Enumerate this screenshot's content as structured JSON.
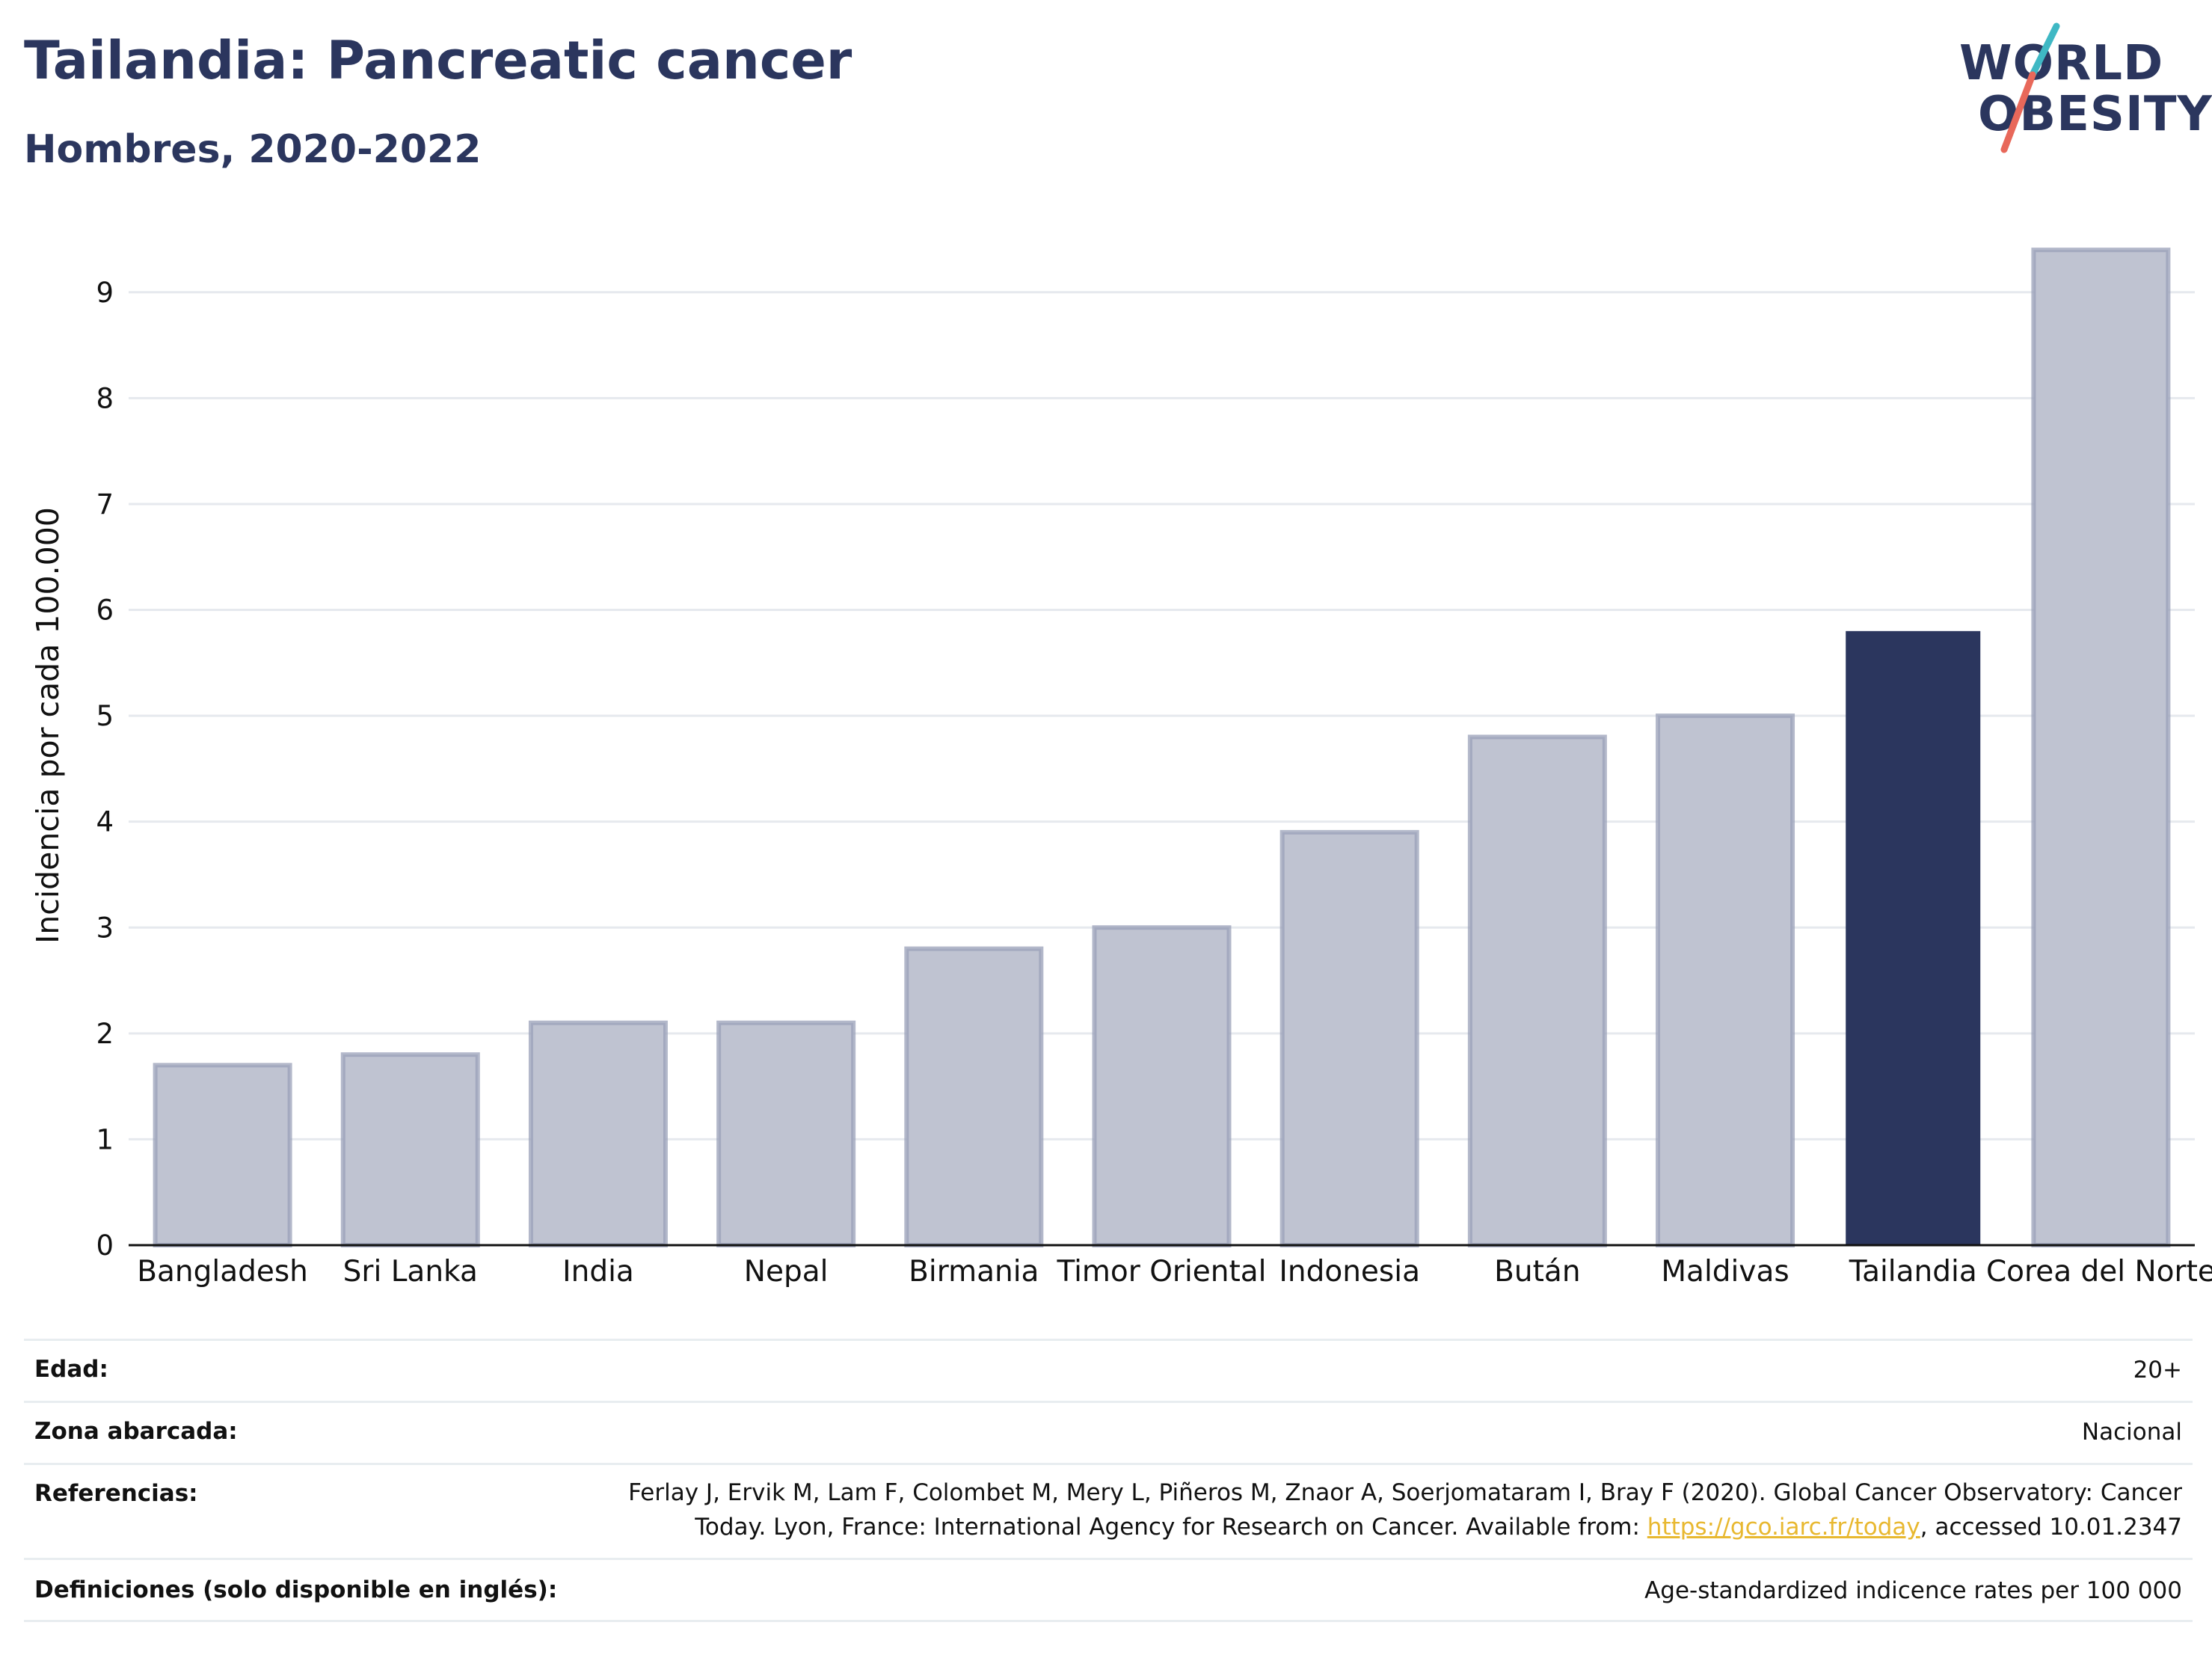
{
  "header": {
    "title": "Tailandia: Pancreatic cancer",
    "subtitle": "Hombres, 2020-2022"
  },
  "logo": {
    "line1": "WORLD",
    "line2": "OBESITY",
    "accent_teal": "#3fb8c4",
    "accent_coral": "#e8685a"
  },
  "colors": {
    "bar": "#bfc3d1",
    "bar_border": "#9aa0b8",
    "highlight": "#2b365e",
    "grid": "#e6e9ee"
  },
  "chart_data": {
    "type": "bar",
    "title": "Tailandia: Pancreatic cancer",
    "subtitle": "Hombres, 2020-2022",
    "xlabel": "",
    "ylabel": "Incidencia por cada 100.000",
    "ylim": [
      0,
      9.5
    ],
    "yticks": [
      "0",
      "1",
      "2",
      "3",
      "4",
      "5",
      "6",
      "7",
      "8",
      "9"
    ],
    "grid": true,
    "highlight": "Tailandia",
    "categories": [
      "Bangladesh",
      "Sri Lanka",
      "India",
      "Nepal",
      "Birmania",
      "Timor Oriental",
      "Indonesia",
      "Bután",
      "Maldivas",
      "Tailandia",
      "Corea del Norte"
    ],
    "values": [
      1.7,
      1.8,
      2.1,
      2.1,
      2.8,
      3.0,
      3.9,
      4.8,
      5.0,
      5.8,
      9.4
    ]
  },
  "meta": {
    "age_label": "Edad:",
    "age_value": "20+",
    "area_label": "Zona abarcada:",
    "area_value": "Nacional",
    "ref_label": "Referencias:",
    "ref_line1": "Ferlay J, Ervik M, Lam F, Colombet M, Mery L, Piñeros M, Znaor A, Soerjomataram I, Bray F (2020). Global Cancer Observatory: Cancer",
    "ref_line2_before": "Today. Lyon, France: International Agency for Research on Cancer. Available from: ",
    "ref_link": "https://gco.iarc.fr/today",
    "ref_line2_after": ", accessed 10.01.2347",
    "def_label": "Definiciones (solo disponible en inglés):",
    "def_value": "Age-standardized indicence rates per 100 000"
  }
}
